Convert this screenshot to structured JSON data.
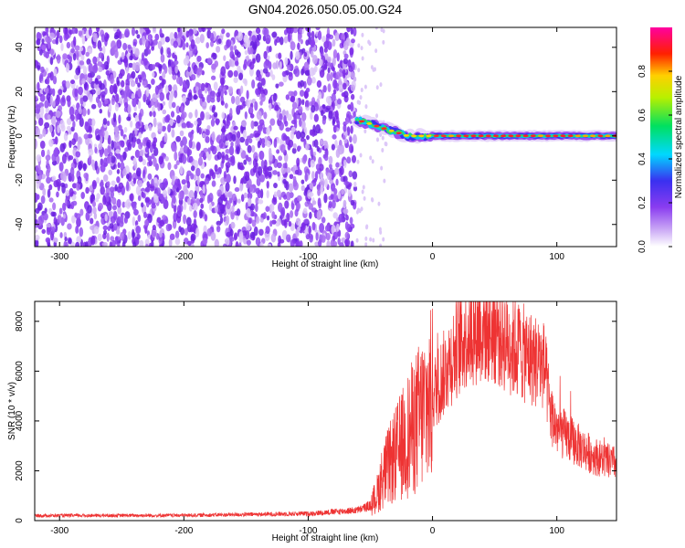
{
  "page": {
    "title": "GN04.2026.050.05.00.G24"
  },
  "chart_data": [
    {
      "type": "heatmap",
      "name": "spectrogram",
      "xlabel": "Height of straight line (km)",
      "ylabel": "Frequency (Hz)",
      "xlim": [
        -320,
        148
      ],
      "ylim": [
        -50,
        49
      ],
      "xticks": [
        -300,
        -200,
        -100,
        0,
        100
      ],
      "yticks": [
        -40,
        -20,
        0,
        20,
        40
      ],
      "colorbar": {
        "label": "Normalized spectral amplitude",
        "range": [
          0.0,
          1.0
        ],
        "ticks": [
          0.0,
          0.2,
          0.4,
          0.6,
          0.8
        ],
        "colormap": "white-purple-blue-cyan-green-yellow-red-magenta"
      },
      "regions": [
        {
          "x_range": [
            -320,
            -62
          ],
          "freq_range": [
            -50,
            49
          ],
          "amplitude": "low (0.02-0.12)",
          "description": "broadband noise"
        },
        {
          "x_range": [
            -62,
            148
          ],
          "freq_center": 0,
          "amplitude_peak": 1.0,
          "description": "narrow carrier line near 0 Hz, starts near +8 Hz at -65 km and converges to 0 Hz by -20 km"
        }
      ],
      "colors": {
        "noise": "#8a3cf0",
        "line_core": "#e02020"
      }
    },
    {
      "type": "line",
      "name": "snr",
      "xlabel": "Height of straight line (km)",
      "ylabel": "SNR (10 * v/v)",
      "xlim": [
        -320,
        148
      ],
      "ylim": [
        0,
        8800
      ],
      "xticks": [
        -300,
        -200,
        -100,
        0,
        100
      ],
      "yticks": [
        0,
        2000,
        4000,
        6000,
        8000
      ],
      "series": [
        {
          "color": "#ee3333",
          "envelope_x": [
            -320,
            -200,
            -100,
            -60,
            -50,
            -45,
            -40,
            -30,
            -20,
            -10,
            0,
            10,
            20,
            30,
            40,
            50,
            60,
            70,
            80,
            90,
            95,
            100,
            110,
            120,
            130,
            140,
            148
          ],
          "envelope_y": [
            200,
            210,
            280,
            420,
            600,
            1000,
            1800,
            2600,
            3400,
            4200,
            5000,
            6000,
            7000,
            7600,
            7800,
            7700,
            7200,
            6800,
            6500,
            6200,
            4300,
            3700,
            3300,
            2900,
            2600,
            2400,
            2300
          ],
          "peak_max": 8800
        }
      ]
    }
  ]
}
